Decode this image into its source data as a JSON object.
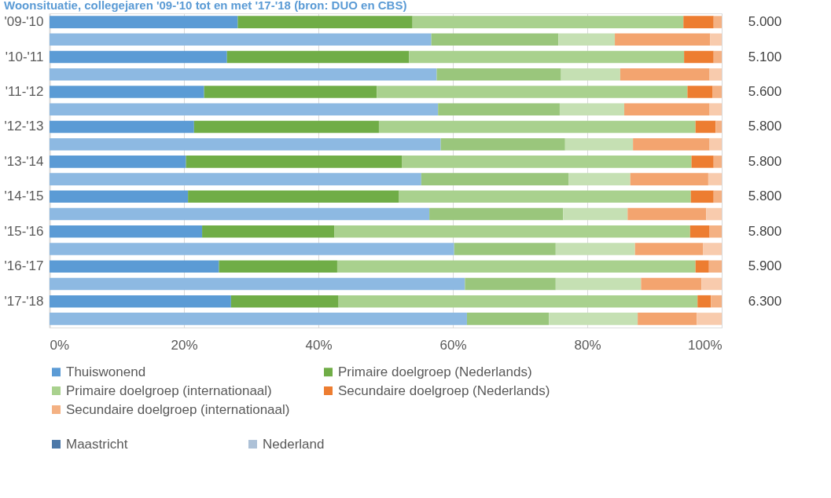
{
  "chart_data": {
    "type": "bar",
    "orientation": "horizontal",
    "stacked": true,
    "title": "Woonsituatie, collegejaren '09-'10 tot en met '17-'18 (bron: DUO en CBS)",
    "categories": [
      "'09-'10",
      null,
      "'10-'11",
      null,
      "'11-'12",
      null,
      "'12-'13",
      null,
      "'13-'14",
      null,
      "'14-'15",
      null,
      "'15-'16",
      null,
      "'16-'17",
      null,
      "'17-'18",
      null
    ],
    "series": [
      {
        "name": "Thuiswonend",
        "color": "#5b9bd5",
        "values": [
          28.0,
          null,
          26.4,
          null,
          23.0,
          null,
          21.5,
          null,
          20.3,
          null,
          20.6,
          null,
          22.7,
          null,
          25.2,
          null,
          27.0,
          null
        ]
      },
      {
        "name": "Primaire doelgroep (Nederlands)",
        "color": "#70ad47",
        "values": [
          26.0,
          null,
          27.1,
          null,
          25.7,
          null,
          27.5,
          null,
          32.1,
          null,
          31.4,
          null,
          19.7,
          null,
          17.6,
          null,
          16.0,
          null
        ]
      },
      {
        "name": "Primaire doelgroep (internationaal)",
        "color": "#a9d18e",
        "values": [
          40.3,
          null,
          40.9,
          null,
          46.2,
          null,
          47.1,
          null,
          43.1,
          null,
          43.4,
          null,
          52.9,
          null,
          53.3,
          null,
          53.4,
          null
        ]
      },
      {
        "name": "Secundaire doelgroep (Nederlands)",
        "color": "#ed7d31",
        "values": [
          4.5,
          null,
          4.4,
          null,
          3.7,
          null,
          3.0,
          null,
          3.3,
          null,
          3.4,
          null,
          2.9,
          null,
          2.0,
          null,
          2.0,
          null
        ]
      },
      {
        "name": "Secundaire doelgroep (internationaal)",
        "color": "#f4b183",
        "values": [
          1.2,
          null,
          1.2,
          null,
          1.4,
          null,
          0.9,
          null,
          1.2,
          null,
          1.2,
          null,
          1.8,
          null,
          1.9,
          null,
          1.6,
          null
        ]
      },
      {
        "color": "#8db9e2",
        "values": [
          null,
          56.8,
          null,
          57.6,
          null,
          57.8,
          null,
          58.2,
          null,
          55.3,
          null,
          56.5,
          null,
          60.2,
          null,
          61.8,
          null,
          62.1
        ]
      },
      {
        "color": "#9ac67c",
        "values": [
          null,
          18.9,
          null,
          18.5,
          null,
          18.1,
          null,
          18.5,
          null,
          21.9,
          null,
          19.9,
          null,
          15.1,
          null,
          13.5,
          null,
          12.2
        ]
      },
      {
        "color": "#c5e0b3",
        "values": [
          null,
          8.4,
          null,
          8.8,
          null,
          9.6,
          null,
          10.1,
          null,
          9.2,
          null,
          9.6,
          null,
          11.8,
          null,
          12.7,
          null,
          13.2
        ]
      },
      {
        "color": "#f3a46f",
        "values": [
          null,
          14.2,
          null,
          13.3,
          null,
          12.7,
          null,
          11.4,
          null,
          11.6,
          null,
          11.7,
          null,
          10.1,
          null,
          9.0,
          null,
          8.8
        ]
      },
      {
        "color": "#f8cbad",
        "values": [
          null,
          1.7,
          null,
          1.8,
          null,
          1.8,
          null,
          1.8,
          null,
          2.0,
          null,
          2.3,
          null,
          2.8,
          null,
          3.0,
          null,
          3.7
        ]
      }
    ],
    "annotations": [
      "5.000",
      "5.100",
      "5.600",
      "5.800",
      "5.800",
      "5.800",
      "5.800",
      "5.900",
      "6.300",
      "Maastricht",
      "Nederland"
    ],
    "xlim": [
      0,
      100
    ],
    "xticks": [
      {
        "value": 0,
        "label": "0%"
      },
      {
        "value": 20,
        "label": "20%"
      },
      {
        "value": 40,
        "label": "40%"
      },
      {
        "value": 60,
        "label": "60%"
      },
      {
        "value": 80,
        "label": "80%"
      },
      {
        "value": 100,
        "label": "100%"
      }
    ],
    "grid": "x",
    "legend": "bottom"
  }
}
